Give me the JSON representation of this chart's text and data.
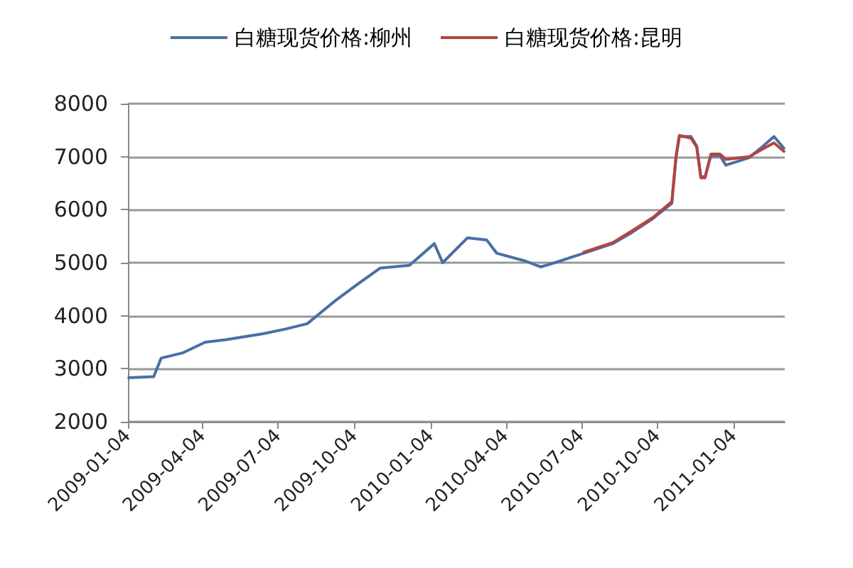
{
  "chart_data": {
    "type": "line",
    "legend": "top",
    "grid": "y",
    "marker": "none",
    "line_style": "solid",
    "xlim": [
      "2009-01-04",
      "2011-03-06"
    ],
    "xticks": [
      {
        "value": "2009-01-04",
        "label": "2009-01-04"
      },
      {
        "value": "2009-04-04",
        "label": "2009-04-04"
      },
      {
        "value": "2009-07-04",
        "label": "2009-07-04"
      },
      {
        "value": "2009-10-04",
        "label": "2009-10-04"
      },
      {
        "value": "2010-01-04",
        "label": "2010-01-04"
      },
      {
        "value": "2010-04-04",
        "label": "2010-04-04"
      },
      {
        "value": "2010-07-04",
        "label": "2010-07-04"
      },
      {
        "value": "2010-10-04",
        "label": "2010-10-04"
      },
      {
        "value": "2011-01-04",
        "label": "2011-01-04"
      }
    ],
    "ylim": [
      2000,
      8000
    ],
    "yticks": [
      2000,
      3000,
      4000,
      5000,
      6000,
      7000,
      8000
    ],
    "series": [
      {
        "name": "白糖现货价格:柳州",
        "color": "#4a6fa5",
        "x": [
          "2009-01-05",
          "2009-02-04",
          "2009-02-13",
          "2009-03-11",
          "2009-04-07",
          "2009-05-03",
          "2009-06-16",
          "2009-07-13",
          "2009-08-08",
          "2009-09-12",
          "2009-10-08",
          "2009-11-04",
          "2009-12-09",
          "2010-01-08",
          "2010-01-18",
          "2010-02-17",
          "2010-03-12",
          "2010-03-24",
          "2010-04-28",
          "2010-05-16",
          "2010-06-02",
          "2010-07-07",
          "2010-08-11",
          "2010-09-03",
          "2010-09-28",
          "2010-10-21",
          "2010-10-26",
          "2010-10-30",
          "2010-11-13",
          "2010-11-20",
          "2010-11-25",
          "2010-11-30",
          "2010-12-07",
          "2010-12-18",
          "2010-12-25",
          "2011-01-22",
          "2011-02-08",
          "2011-02-21",
          "2011-03-05"
        ],
        "values": [
          2830,
          2850,
          3200,
          3300,
          3500,
          3550,
          3660,
          3750,
          3850,
          4300,
          4600,
          4900,
          4950,
          5360,
          5000,
          5470,
          5430,
          5180,
          5030,
          4920,
          5000,
          5180,
          5360,
          5570,
          5830,
          6120,
          6980,
          7380,
          7380,
          7200,
          6620,
          6620,
          7020,
          7020,
          6840,
          6980,
          7200,
          7380,
          7160
        ]
      },
      {
        "name": "白糖现货价格:昆明",
        "color": "#b5443f",
        "x": [
          "2010-07-07",
          "2010-08-11",
          "2010-09-03",
          "2010-09-28",
          "2010-10-21",
          "2010-10-26",
          "2010-10-30",
          "2010-11-13",
          "2010-11-20",
          "2010-11-25",
          "2010-11-30",
          "2010-12-07",
          "2010-12-18",
          "2010-12-25",
          "2011-01-22",
          "2011-02-08",
          "2011-02-21",
          "2011-03-05"
        ],
        "values": [
          5200,
          5380,
          5600,
          5850,
          6150,
          7000,
          7400,
          7350,
          7180,
          6600,
          6600,
          7050,
          7050,
          6950,
          7000,
          7150,
          7260,
          7100
        ]
      }
    ]
  }
}
